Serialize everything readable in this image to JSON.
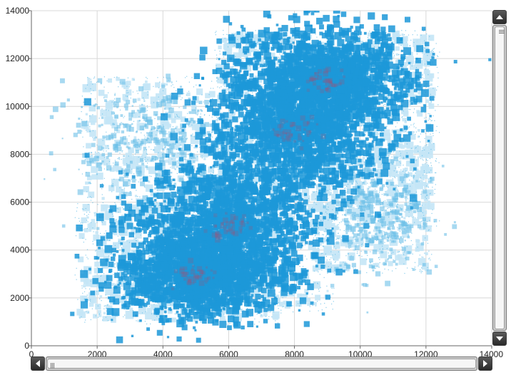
{
  "chart_data": {
    "type": "scatter",
    "title": "",
    "xlabel": "",
    "ylabel": "",
    "xlim": [
      0,
      14000
    ],
    "ylim": [
      0,
      14000
    ],
    "x_ticks": [
      "0",
      "2000",
      "4000",
      "6000",
      "8000",
      "10000",
      "12000",
      "14000"
    ],
    "y_ticks": [
      "0",
      "2000",
      "4000",
      "6000",
      "8000",
      "10000",
      "12000",
      "14000"
    ],
    "grid": true,
    "legend": "none",
    "clusters": [
      {
        "center_x": 5000,
        "center_y": 3000,
        "extent_x": [
          1300,
          7700
        ],
        "extent_y": [
          900,
          6000
        ]
      },
      {
        "center_x": 6000,
        "center_y": 5000,
        "extent_x": [
          2500,
          9200
        ],
        "extent_y": [
          1400,
          8800
        ]
      },
      {
        "center_x": 8000,
        "center_y": 9000,
        "extent_x": [
          5500,
          12400
        ],
        "extent_y": [
          5000,
          13200
        ]
      },
      {
        "center_x": 9000,
        "center_y": 11000,
        "extent_x": [
          5600,
          12400
        ],
        "extent_y": [
          7000,
          13200
        ]
      },
      {
        "center_x": 3500,
        "center_y": 8500,
        "extent_x": [
          1500,
          6500
        ],
        "extent_y": [
          5500,
          11300
        ]
      },
      {
        "center_x": 10500,
        "center_y": 5500,
        "extent_x": [
          8500,
          12200
        ],
        "extent_y": [
          3000,
          8500
        ]
      }
    ],
    "colors": {
      "dense": "#1c98d8",
      "medium": "#6cc0e8",
      "light": "#c4e5f6",
      "hotspot": "#b04a6a",
      "grid": "#d8d8d8",
      "axis": "#666666"
    }
  },
  "scrollbars": {
    "vertical": {
      "thumb_start": 0.0,
      "thumb_end": 1.0
    },
    "horizontal": {
      "thumb_start": 0.0,
      "thumb_end": 1.0
    }
  }
}
